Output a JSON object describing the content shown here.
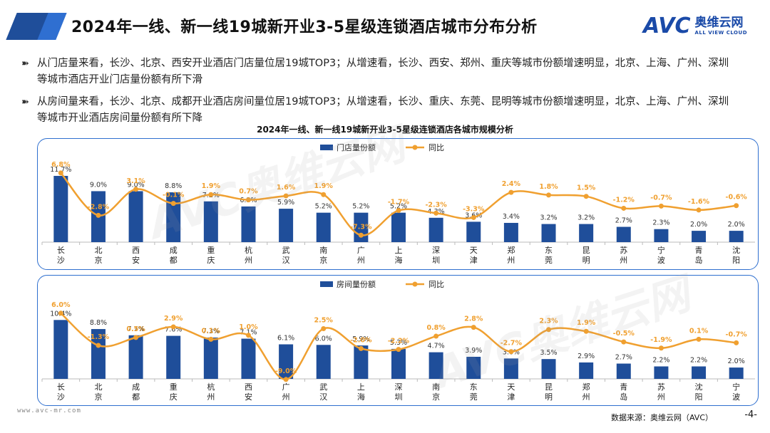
{
  "header": {
    "title": "2024年一线、新一线19城新开业3-5星级连锁酒店城市分布分析",
    "logo_mark": "AVC",
    "logo_cn": "奥维云网",
    "logo_en": "ALL VIEW CLOUD"
  },
  "bullets": [
    {
      "icon": "➽",
      "text": "从门店量来看，长沙、北京、西安开业酒店门店量位居19城TOP3；从增速看，长沙、西安、郑州、重庆等城市份额增速明显，北京、上海、广州、深圳等城市酒店开业门店量份额有所下滑"
    },
    {
      "icon": "➽",
      "text": "从房间量来看，长沙、北京、成都开业酒店房间量位居19城TOP3；从增速看，长沙、重庆、东莞、昆明等城市份额增速明显，北京、上海、广州、深圳等城市开业酒店房间量份额有所下降"
    }
  ],
  "chart_title": "2024年一线、新一线19城新开业3-5星级连锁酒店各城市规模分析",
  "watermark": "AVC奥维云网",
  "chart_data": [
    {
      "type": "bar",
      "title": "门店量份额 vs 同比",
      "categories": [
        "长沙",
        "北京",
        "西安",
        "成都",
        "重庆",
        "杭州",
        "武汉",
        "南京",
        "广州",
        "上海",
        "深圳",
        "天津",
        "郑州",
        "东莞",
        "昆明",
        "苏州",
        "宁波",
        "青岛",
        "沈阳"
      ],
      "series": [
        {
          "name": "门店量份额",
          "kind": "bar",
          "color": "#1f4e9a",
          "values": [
            11.7,
            9.0,
            9.0,
            8.8,
            7.2,
            6.3,
            5.9,
            5.2,
            5.2,
            5.2,
            4.3,
            3.6,
            3.4,
            3.2,
            3.2,
            2.7,
            2.3,
            2.0,
            2.0
          ],
          "labels": [
            "11.7%",
            "9.0%",
            "9.0%",
            "8.8%",
            "7.2%",
            "6.3%",
            "5.9%",
            "5.2%",
            "5.2%",
            "5.2%",
            "4.3%",
            "3.6%",
            "3.4%",
            "3.2%",
            "3.2%",
            "2.7%",
            "2.3%",
            "2.0%",
            "2.0%"
          ]
        },
        {
          "name": "同比",
          "kind": "line",
          "color": "#f0a030",
          "values": [
            6.8,
            -2.8,
            3.1,
            -0.1,
            1.9,
            0.7,
            1.6,
            1.9,
            -7.3,
            -1.7,
            -2.3,
            -3.3,
            2.4,
            1.8,
            1.5,
            -1.2,
            -0.7,
            -1.6,
            -0.6
          ],
          "labels": [
            "6.8%",
            "-2.8%",
            "3.1%",
            "-0.1%",
            "1.9%",
            "0.7%",
            "1.6%",
            "1.9%",
            "-7.3%",
            "-1.7%",
            "-2.3%",
            "-3.3%",
            "2.4%",
            "1.8%",
            "1.5%",
            "-1.2%",
            "-0.7%",
            "-1.6%",
            "-0.6%"
          ]
        }
      ]
    },
    {
      "type": "bar",
      "title": "房间量份额 vs 同比",
      "categories": [
        "长沙",
        "北京",
        "成都",
        "重庆",
        "杭州",
        "西安",
        "广州",
        "武汉",
        "上海",
        "深圳",
        "南京",
        "东莞",
        "天津",
        "昆明",
        "郑州",
        "青岛",
        "苏州",
        "沈阳",
        "宁波"
      ],
      "series": [
        {
          "name": "房间量份额",
          "kind": "bar",
          "color": "#1f4e9a",
          "values": [
            10.4,
            8.8,
            7.7,
            7.6,
            7.3,
            7.1,
            6.1,
            6.0,
            5.9,
            5.3,
            4.7,
            3.9,
            3.6,
            3.5,
            2.9,
            2.7,
            2.2,
            2.2,
            2.0
          ],
          "labels": [
            "10.4%",
            "8.8%",
            "7.7%",
            "7.6%",
            "7.3%",
            "7.1%",
            "6.1%",
            "6.0%",
            "5.9%",
            "5.3%",
            "4.7%",
            "3.9%",
            "3.6%",
            "3.5%",
            "2.9%",
            "2.7%",
            "2.2%",
            "2.2%",
            "2.0%"
          ]
        },
        {
          "name": "同比",
          "kind": "line",
          "color": "#f0a030",
          "values": [
            6.0,
            -1.3,
            0.5,
            2.9,
            0.1,
            1.0,
            -9.0,
            2.5,
            -2.0,
            -2.2,
            0.8,
            2.8,
            -2.7,
            2.3,
            1.9,
            -0.5,
            -1.9,
            0.1,
            -0.7
          ],
          "labels": [
            "6.0%",
            "-1.3%",
            "0.5%",
            "2.9%",
            "0.1%",
            "1.0%",
            "-9.0%",
            "2.5%",
            "-2.0%",
            "-2.2%",
            "0.8%",
            "2.8%",
            "-2.7%",
            "2.3%",
            "1.9%",
            "-0.5%",
            "-1.9%",
            "0.1%",
            "-0.7%"
          ]
        }
      ]
    }
  ],
  "footer": {
    "website": "www.avc-mr.com",
    "source": "数据来源：奥维云网（AVC）",
    "page": "-4-"
  }
}
